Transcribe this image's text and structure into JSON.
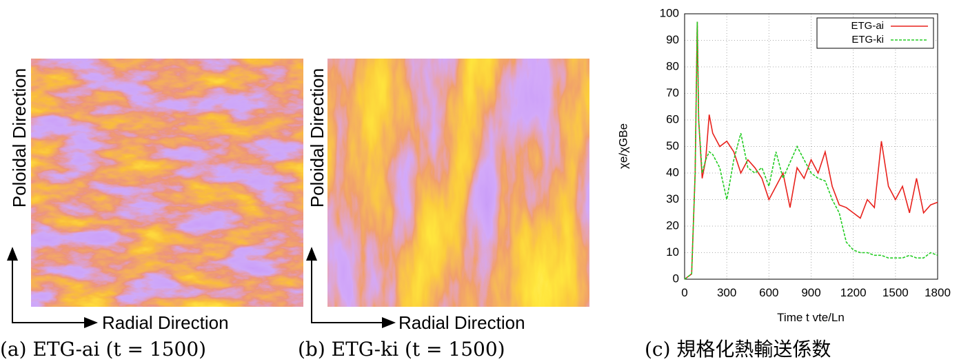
{
  "panels": [
    {
      "caption": "(a) ETG-ai (t = 1500)",
      "y_label": "Poloidal Direction",
      "x_label": "Radial Direction"
    },
    {
      "caption": "(b) ETG-ki (t = 1500)",
      "y_label": "Poloidal Direction",
      "x_label": "Radial Direction"
    }
  ],
  "chart_data": {
    "type": "line",
    "caption": "(c) 規格化熱輸送係数",
    "x_label": "Time t vte/Ln",
    "y_label": "χe/χGBe",
    "x": [
      0,
      50,
      75,
      90,
      100,
      125,
      150,
      175,
      200,
      250,
      300,
      350,
      400,
      450,
      500,
      550,
      600,
      650,
      700,
      750,
      800,
      850,
      900,
      950,
      1000,
      1050,
      1100,
      1150,
      1200,
      1250,
      1300,
      1350,
      1400,
      1450,
      1500,
      1550,
      1600,
      1650,
      1700,
      1750,
      1800
    ],
    "series": [
      {
        "name": "ETG-ai",
        "color": "#e8211c",
        "dash": false,
        "values": [
          0,
          2,
          40,
          97,
          60,
          38,
          45,
          62,
          55,
          50,
          52,
          48,
          40,
          45,
          42,
          38,
          30,
          35,
          40,
          27,
          42,
          38,
          45,
          40,
          48,
          35,
          28,
          27,
          25,
          23,
          30,
          27,
          52,
          35,
          30,
          35,
          25,
          38,
          25,
          28,
          29
        ]
      },
      {
        "name": "ETG-ki",
        "color": "#22cc22",
        "dash": true,
        "values": [
          0,
          2,
          40,
          97,
          60,
          40,
          45,
          48,
          47,
          42,
          30,
          45,
          55,
          42,
          40,
          42,
          35,
          48,
          38,
          44,
          50,
          45,
          40,
          38,
          37,
          30,
          25,
          14,
          11,
          10,
          10,
          9,
          9,
          8,
          8,
          8,
          9,
          8,
          8,
          10,
          9
        ]
      }
    ],
    "xlim": [
      0,
      1800
    ],
    "xticks": [
      0,
      300,
      600,
      900,
      1200,
      1500,
      1800
    ],
    "ylim": [
      0,
      100
    ],
    "yticks": [
      0,
      10,
      20,
      30,
      40,
      50,
      60,
      70,
      80,
      90,
      100
    ],
    "grid": true,
    "legend": "top-right"
  }
}
